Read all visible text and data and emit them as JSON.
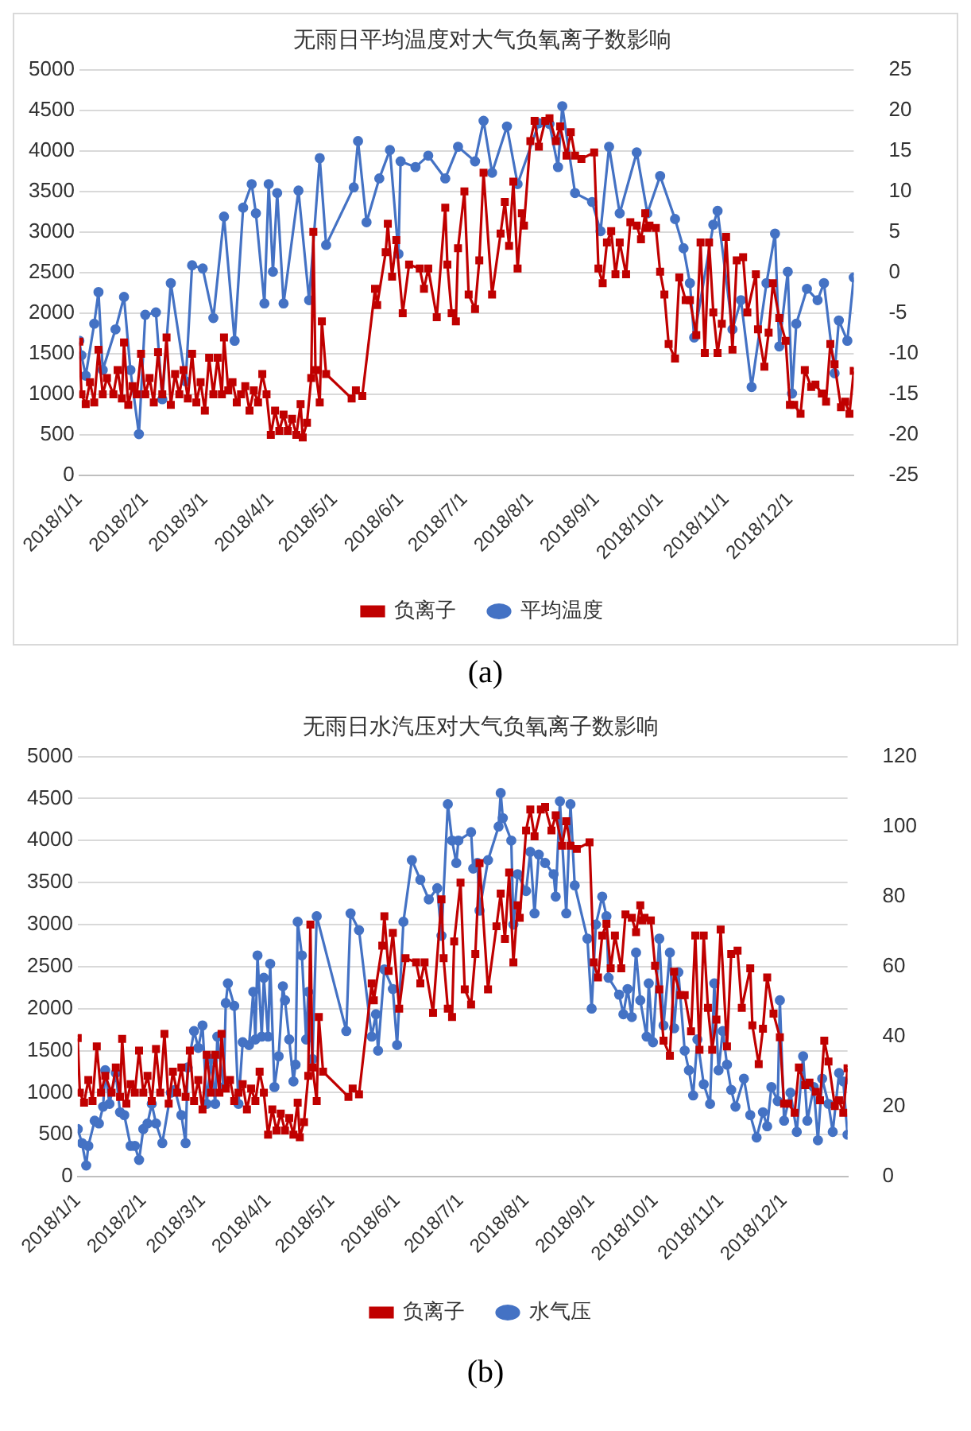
{
  "chart_data": [
    {
      "type": "line",
      "title": "无雨日平均温度对大气负氧离子数影响",
      "annotations": [
        "(a)"
      ],
      "xlim": [
        "2018-01-01",
        "2018-12-31"
      ],
      "xticks": [
        {
          "value": "2018-01-01",
          "label": "2018/1/1"
        },
        {
          "value": "2018-02-01",
          "label": "2018/2/1"
        },
        {
          "value": "2018-03-01",
          "label": "2018/3/1"
        },
        {
          "value": "2018-04-01",
          "label": "2018/4/1"
        },
        {
          "value": "2018-05-01",
          "label": "2018/5/1"
        },
        {
          "value": "2018-06-01",
          "label": "2018/6/1"
        },
        {
          "value": "2018-07-01",
          "label": "2018/7/1"
        },
        {
          "value": "2018-08-01",
          "label": "2018/8/1"
        },
        {
          "value": "2018-09-01",
          "label": "2018/9/1"
        },
        {
          "value": "2018-10-01",
          "label": "2018/10/1"
        },
        {
          "value": "2018-11-01",
          "label": "2018/11/1"
        },
        {
          "value": "2018-12-01",
          "label": "2018/12/1"
        }
      ],
      "ylim": [
        0,
        5000
      ],
      "yticks": [
        0,
        500,
        1000,
        1500,
        2000,
        2500,
        3000,
        3500,
        4000,
        4500,
        5000
      ],
      "y2lim": [
        -25,
        25
      ],
      "y2ticks": [
        -25,
        -20,
        -15,
        -10,
        -5,
        0,
        5,
        10,
        15,
        20,
        25
      ],
      "grid": "y",
      "legend": "bottom",
      "line_style": "solid",
      "series": [
        {
          "name": "负离子",
          "color": "#c00000",
          "marker": "square",
          "x": [
            "2018-01-01",
            "2018-01-02",
            "2018-01-04",
            "2018-01-06",
            "2018-01-08",
            "2018-01-10",
            "2018-01-12",
            "2018-01-14",
            "2018-01-17",
            "2018-01-19",
            "2018-01-21",
            "2018-01-22",
            "2018-01-24",
            "2018-01-26",
            "2018-01-28",
            "2018-01-30",
            "2018-02-01",
            "2018-02-03",
            "2018-02-05",
            "2018-02-07",
            "2018-02-09",
            "2018-02-11",
            "2018-02-13",
            "2018-02-15",
            "2018-02-17",
            "2018-02-19",
            "2018-02-21",
            "2018-02-23",
            "2018-02-25",
            "2018-02-27",
            "2018-03-01",
            "2018-03-03",
            "2018-03-05",
            "2018-03-07",
            "2018-03-09",
            "2018-03-10",
            "2018-03-12",
            "2018-03-14",
            "2018-03-16",
            "2018-03-18",
            "2018-03-20",
            "2018-03-22",
            "2018-03-24",
            "2018-03-26",
            "2018-03-28",
            "2018-03-30",
            "2018-04-01",
            "2018-04-03",
            "2018-04-05",
            "2018-04-07",
            "2018-04-09",
            "2018-04-11",
            "2018-04-13",
            "2018-04-15",
            "2018-04-16",
            "2018-04-18",
            "2018-04-20",
            "2018-04-21",
            "2018-04-22",
            "2018-04-24",
            "2018-04-25",
            "2018-04-27",
            "2018-05-09",
            "2018-05-11",
            "2018-05-14",
            "2018-05-20",
            "2018-05-21",
            "2018-05-25",
            "2018-05-26",
            "2018-05-28",
            "2018-05-30",
            "2018-06-02",
            "2018-06-05",
            "2018-06-10",
            "2018-06-12",
            "2018-06-14",
            "2018-06-18",
            "2018-06-22",
            "2018-06-23",
            "2018-06-25",
            "2018-06-27",
            "2018-06-28",
            "2018-07-01",
            "2018-07-03",
            "2018-07-06",
            "2018-07-08",
            "2018-07-10",
            "2018-07-14",
            "2018-07-18",
            "2018-07-20",
            "2018-07-22",
            "2018-07-24",
            "2018-07-26",
            "2018-07-28",
            "2018-07-29",
            "2018-08-01",
            "2018-08-03",
            "2018-08-05",
            "2018-08-08",
            "2018-08-10",
            "2018-08-13",
            "2018-08-15",
            "2018-08-18",
            "2018-08-20",
            "2018-08-22",
            "2018-08-25",
            "2018-08-31",
            "2018-09-02",
            "2018-09-04",
            "2018-09-06",
            "2018-09-08",
            "2018-09-10",
            "2018-09-12",
            "2018-09-15",
            "2018-09-17",
            "2018-09-20",
            "2018-09-22",
            "2018-09-24",
            "2018-09-25",
            "2018-09-26",
            "2018-09-29",
            "2018-10-01",
            "2018-10-03",
            "2018-10-05",
            "2018-10-08",
            "2018-10-10",
            "2018-10-13",
            "2018-10-15",
            "2018-10-18",
            "2018-10-20",
            "2018-10-22",
            "2018-10-24",
            "2018-10-26",
            "2018-10-28",
            "2018-10-30",
            "2018-11-01",
            "2018-11-04",
            "2018-11-06",
            "2018-11-09",
            "2018-11-11",
            "2018-11-15",
            "2018-11-16",
            "2018-11-19",
            "2018-11-21",
            "2018-11-23",
            "2018-11-26",
            "2018-11-29",
            "2018-12-01",
            "2018-12-03",
            "2018-12-06",
            "2018-12-08",
            "2018-12-11",
            "2018-12-13",
            "2018-12-16",
            "2018-12-18",
            "2018-12-20",
            "2018-12-22",
            "2018-12-25",
            "2018-12-27",
            "2018-12-29",
            "2018-12-31"
          ],
          "values": [
            1650,
            1000,
            880,
            1150,
            900,
            1550,
            1000,
            1200,
            1000,
            1300,
            950,
            1640,
            870,
            1100,
            1000,
            1500,
            1000,
            1200,
            900,
            1520,
            1000,
            1700,
            870,
            1250,
            1000,
            1300,
            950,
            1500,
            900,
            1150,
            800,
            1450,
            1000,
            1450,
            1000,
            1700,
            1050,
            1150,
            900,
            1000,
            1100,
            800,
            1050,
            900,
            1250,
            1000,
            500,
            800,
            550,
            750,
            550,
            700,
            500,
            880,
            470,
            650,
            1200,
            3000,
            1300,
            900,
            1900,
            1250,
            950,
            1050,
            980,
            2300,
            2100,
            2750,
            3100,
            2450,
            2900,
            2000,
            2600,
            2550,
            2300,
            2550,
            1950,
            3300,
            2600,
            2000,
            1900,
            2800,
            3500,
            2230,
            2050,
            2650,
            3730,
            2230,
            2980,
            3370,
            2830,
            3620,
            2550,
            3230,
            3080,
            4120,
            4370,
            4050,
            4370,
            4400,
            4120,
            4300,
            3940,
            4230,
            3940,
            3900,
            3980,
            2550,
            2370,
            2870,
            3010,
            2480,
            2870,
            2480,
            3120,
            3080,
            2910,
            3230,
            3050,
            3080,
            3050,
            2510,
            2230,
            1620,
            1440,
            2440,
            2160,
            2160,
            1730,
            2870,
            1510,
            2870,
            2010,
            1510,
            1870,
            2940,
            1550,
            2650,
            2690,
            2010,
            2480,
            1800,
            1340,
            1760,
            2370,
            1940,
            1660,
            870,
            870,
            760,
            1300,
            1090,
            1120,
            1010,
            910,
            1620,
            1370,
            840,
            910,
            760,
            1290
          ]
        },
        {
          "name": "平均温度",
          "color": "#4472c4",
          "marker": "circle",
          "axis": "y2",
          "x": [
            "2018-01-01",
            "2018-01-02",
            "2018-01-04",
            "2018-01-08",
            "2018-01-10",
            "2018-01-12",
            "2018-01-18",
            "2018-01-22",
            "2018-01-25",
            "2018-01-29",
            "2018-02-01",
            "2018-02-06",
            "2018-02-09",
            "2018-02-13",
            "2018-02-20",
            "2018-02-23",
            "2018-02-28",
            "2018-03-05",
            "2018-03-10",
            "2018-03-15",
            "2018-03-19",
            "2018-03-23",
            "2018-03-25",
            "2018-03-29",
            "2018-03-31",
            "2018-04-02",
            "2018-04-04",
            "2018-04-07",
            "2018-04-14",
            "2018-04-19",
            "2018-04-24",
            "2018-04-27",
            "2018-05-10",
            "2018-05-12",
            "2018-05-16",
            "2018-05-22",
            "2018-05-27",
            "2018-05-31",
            "2018-06-01",
            "2018-06-08",
            "2018-06-14",
            "2018-06-22",
            "2018-06-28",
            "2018-07-06",
            "2018-07-10",
            "2018-07-14",
            "2018-07-21",
            "2018-07-26",
            "2018-08-05",
            "2018-08-10",
            "2018-08-14",
            "2018-08-16",
            "2018-08-22",
            "2018-08-30",
            "2018-09-03",
            "2018-09-07",
            "2018-09-12",
            "2018-09-20",
            "2018-09-25",
            "2018-10-01",
            "2018-10-08",
            "2018-10-12",
            "2018-10-15",
            "2018-10-17",
            "2018-10-26",
            "2018-10-28",
            "2018-11-04",
            "2018-11-08",
            "2018-11-13",
            "2018-11-20",
            "2018-11-24",
            "2018-11-26",
            "2018-11-30",
            "2018-12-02",
            "2018-12-04",
            "2018-12-09",
            "2018-12-14",
            "2018-12-17",
            "2018-12-22",
            "2018-12-24",
            "2018-12-28",
            "2018-12-31"
          ],
          "values": [
            -8.4,
            -10.2,
            -12.7,
            -6.3,
            -2.4,
            -12,
            -7,
            -3,
            -12,
            -19.9,
            -5.2,
            -4.9,
            -15.6,
            -1.3,
            -13.4,
            0.9,
            0.5,
            -5.6,
            6.9,
            -8.4,
            8,
            10.9,
            7.3,
            -3.8,
            10.9,
            0.1,
            9.8,
            -3.8,
            10.1,
            -3.4,
            14.1,
            3.4,
            10.5,
            16.2,
            6.2,
            11.6,
            15.1,
            2.3,
            13.7,
            13,
            14.4,
            11.6,
            15.5,
            13.7,
            18.7,
            12.3,
            18,
            10.9,
            18.4,
            18.3,
            13,
            20.5,
            9.8,
            8.7,
            5.1,
            15.5,
            7.3,
            14.8,
            7.3,
            11.9,
            6.6,
            3,
            -1.3,
            -8,
            5.9,
            7.6,
            -7,
            -3.4,
            -14.1,
            -1.3,
            4.8,
            -9.1,
            0.1,
            -14.9,
            -6.3,
            -2,
            -3.4,
            -1.3,
            -12.4,
            -5.9,
            -8.4,
            -0.6
          ]
        }
      ]
    },
    {
      "type": "line",
      "title": "无雨日水汽压对大气负氧离子数影响",
      "annotations": [
        "(b)"
      ],
      "xlim": [
        "2018-01-01",
        "2018-12-31"
      ],
      "xticks": [
        {
          "value": "2018-01-01",
          "label": "2018/1/1"
        },
        {
          "value": "2018-02-01",
          "label": "2018/2/1"
        },
        {
          "value": "2018-03-01",
          "label": "2018/3/1"
        },
        {
          "value": "2018-04-01",
          "label": "2018/4/1"
        },
        {
          "value": "2018-05-01",
          "label": "2018/5/1"
        },
        {
          "value": "2018-06-01",
          "label": "2018/6/1"
        },
        {
          "value": "2018-07-01",
          "label": "2018/7/1"
        },
        {
          "value": "2018-08-01",
          "label": "2018/8/1"
        },
        {
          "value": "2018-09-01",
          "label": "2018/9/1"
        },
        {
          "value": "2018-10-01",
          "label": "2018/10/1"
        },
        {
          "value": "2018-11-01",
          "label": "2018/11/1"
        },
        {
          "value": "2018-12-01",
          "label": "2018/12/1"
        }
      ],
      "ylim": [
        0,
        5000
      ],
      "yticks": [
        0,
        500,
        1000,
        1500,
        2000,
        2500,
        3000,
        3500,
        4000,
        4500,
        5000
      ],
      "y2lim": [
        0,
        120
      ],
      "y2ticks": [
        0,
        20,
        40,
        60,
        80,
        100,
        120
      ],
      "grid": "y",
      "legend": "bottom",
      "line_style": "solid",
      "series": [
        {
          "name": "负离子",
          "color": "#c00000",
          "marker": "square",
          "x": [
            "2018-01-01",
            "2018-01-02",
            "2018-01-04",
            "2018-01-06",
            "2018-01-08",
            "2018-01-10",
            "2018-01-12",
            "2018-01-14",
            "2018-01-17",
            "2018-01-19",
            "2018-01-21",
            "2018-01-22",
            "2018-01-24",
            "2018-01-26",
            "2018-01-28",
            "2018-01-30",
            "2018-02-01",
            "2018-02-03",
            "2018-02-05",
            "2018-02-07",
            "2018-02-09",
            "2018-02-11",
            "2018-02-13",
            "2018-02-15",
            "2018-02-17",
            "2018-02-19",
            "2018-02-21",
            "2018-02-23",
            "2018-02-25",
            "2018-02-27",
            "2018-03-01",
            "2018-03-03",
            "2018-03-05",
            "2018-03-07",
            "2018-03-09",
            "2018-03-10",
            "2018-03-12",
            "2018-03-14",
            "2018-03-16",
            "2018-03-18",
            "2018-03-20",
            "2018-03-22",
            "2018-03-24",
            "2018-03-26",
            "2018-03-28",
            "2018-03-30",
            "2018-04-01",
            "2018-04-03",
            "2018-04-05",
            "2018-04-07",
            "2018-04-09",
            "2018-04-11",
            "2018-04-13",
            "2018-04-15",
            "2018-04-16",
            "2018-04-18",
            "2018-04-20",
            "2018-04-21",
            "2018-04-22",
            "2018-04-24",
            "2018-04-25",
            "2018-04-27",
            "2018-05-09",
            "2018-05-11",
            "2018-05-14",
            "2018-05-20",
            "2018-05-21",
            "2018-05-25",
            "2018-05-26",
            "2018-05-28",
            "2018-05-30",
            "2018-06-02",
            "2018-06-05",
            "2018-06-10",
            "2018-06-12",
            "2018-06-14",
            "2018-06-18",
            "2018-06-22",
            "2018-06-23",
            "2018-06-25",
            "2018-06-27",
            "2018-06-28",
            "2018-07-01",
            "2018-07-03",
            "2018-07-06",
            "2018-07-08",
            "2018-07-10",
            "2018-07-14",
            "2018-07-18",
            "2018-07-20",
            "2018-07-22",
            "2018-07-24",
            "2018-07-26",
            "2018-07-28",
            "2018-07-29",
            "2018-08-01",
            "2018-08-03",
            "2018-08-05",
            "2018-08-08",
            "2018-08-10",
            "2018-08-13",
            "2018-08-15",
            "2018-08-18",
            "2018-08-20",
            "2018-08-22",
            "2018-08-25",
            "2018-08-31",
            "2018-09-02",
            "2018-09-04",
            "2018-09-06",
            "2018-09-08",
            "2018-09-10",
            "2018-09-12",
            "2018-09-15",
            "2018-09-17",
            "2018-09-20",
            "2018-09-22",
            "2018-09-24",
            "2018-09-25",
            "2018-09-26",
            "2018-09-29",
            "2018-10-01",
            "2018-10-03",
            "2018-10-05",
            "2018-10-08",
            "2018-10-10",
            "2018-10-13",
            "2018-10-15",
            "2018-10-18",
            "2018-10-20",
            "2018-10-22",
            "2018-10-24",
            "2018-10-26",
            "2018-10-28",
            "2018-10-30",
            "2018-11-01",
            "2018-11-04",
            "2018-11-06",
            "2018-11-09",
            "2018-11-11",
            "2018-11-15",
            "2018-11-16",
            "2018-11-19",
            "2018-11-21",
            "2018-11-23",
            "2018-11-26",
            "2018-11-29",
            "2018-12-01",
            "2018-12-03",
            "2018-12-06",
            "2018-12-08",
            "2018-12-11",
            "2018-12-13",
            "2018-12-16",
            "2018-12-18",
            "2018-12-20",
            "2018-12-22",
            "2018-12-25",
            "2018-12-27",
            "2018-12-29",
            "2018-12-31"
          ],
          "values": [
            1650,
            1000,
            880,
            1150,
            900,
            1550,
            1000,
            1200,
            1000,
            1300,
            950,
            1640,
            870,
            1100,
            1000,
            1500,
            1000,
            1200,
            900,
            1520,
            1000,
            1700,
            870,
            1250,
            1000,
            1300,
            950,
            1500,
            900,
            1150,
            800,
            1450,
            1000,
            1450,
            1000,
            1700,
            1050,
            1150,
            900,
            1000,
            1100,
            800,
            1050,
            900,
            1250,
            1000,
            500,
            800,
            550,
            750,
            550,
            700,
            500,
            880,
            470,
            650,
            1200,
            3000,
            1300,
            900,
            1900,
            1250,
            950,
            1050,
            980,
            2300,
            2100,
            2750,
            3100,
            2450,
            2900,
            2000,
            2600,
            2550,
            2300,
            2550,
            1950,
            3300,
            2600,
            2000,
            1900,
            2800,
            3500,
            2230,
            2050,
            2650,
            3730,
            2230,
            2980,
            3370,
            2830,
            3620,
            2550,
            3230,
            3080,
            4120,
            4370,
            4050,
            4370,
            4400,
            4120,
            4300,
            3940,
            4230,
            3940,
            3900,
            3980,
            2550,
            2370,
            2870,
            3010,
            2480,
            2870,
            2480,
            3120,
            3080,
            2910,
            3230,
            3050,
            3080,
            3050,
            2510,
            2230,
            1620,
            1440,
            2440,
            2160,
            2160,
            1730,
            2870,
            1510,
            2870,
            2010,
            1510,
            1870,
            2940,
            1550,
            2650,
            2690,
            2010,
            2480,
            1800,
            1340,
            1760,
            2370,
            1940,
            1660,
            870,
            870,
            760,
            1300,
            1090,
            1120,
            1010,
            910,
            1620,
            1370,
            840,
            910,
            760,
            1290
          ]
        },
        {
          "name": "水气压",
          "color": "#4472c4",
          "marker": "circle",
          "axis": "y2",
          "x": [
            "2018-01-01",
            "2018-01-03",
            "2018-01-05",
            "2018-01-06",
            "2018-01-09",
            "2018-01-11",
            "2018-01-13",
            "2018-01-14",
            "2018-01-16",
            "2018-01-19",
            "2018-01-21",
            "2018-01-23",
            "2018-01-26",
            "2018-01-28",
            "2018-01-30",
            "2018-02-01",
            "2018-02-03",
            "2018-02-05",
            "2018-02-07",
            "2018-02-10",
            "2018-02-14",
            "2018-02-16",
            "2018-02-19",
            "2018-02-21",
            "2018-02-22",
            "2018-02-25",
            "2018-02-27",
            "2018-03-01",
            "2018-03-03",
            "2018-03-05",
            "2018-03-07",
            "2018-03-08",
            "2018-03-11",
            "2018-03-12",
            "2018-03-13",
            "2018-03-16",
            "2018-03-18",
            "2018-03-20",
            "2018-03-23",
            "2018-03-25",
            "2018-03-26",
            "2018-03-27",
            "2018-03-29",
            "2018-03-30",
            "2018-04-01",
            "2018-04-02",
            "2018-04-04",
            "2018-04-06",
            "2018-04-08",
            "2018-04-09",
            "2018-04-11",
            "2018-04-13",
            "2018-04-14",
            "2018-04-15",
            "2018-04-17",
            "2018-04-19",
            "2018-04-20",
            "2018-04-22",
            "2018-04-24",
            "2018-05-08",
            "2018-05-10",
            "2018-05-14",
            "2018-05-20",
            "2018-05-22",
            "2018-05-23",
            "2018-05-26",
            "2018-05-30",
            "2018-06-01",
            "2018-06-04",
            "2018-06-08",
            "2018-06-12",
            "2018-06-16",
            "2018-06-20",
            "2018-06-22",
            "2018-06-25",
            "2018-06-27",
            "2018-06-29",
            "2018-06-30",
            "2018-07-06",
            "2018-07-07",
            "2018-07-09",
            "2018-07-10",
            "2018-07-14",
            "2018-07-19",
            "2018-07-20",
            "2018-07-21",
            "2018-07-25",
            "2018-07-26",
            "2018-07-28",
            "2018-08-01",
            "2018-08-03",
            "2018-08-05",
            "2018-08-07",
            "2018-08-10",
            "2018-08-14",
            "2018-08-15",
            "2018-08-17",
            "2018-08-20",
            "2018-08-22",
            "2018-08-24",
            "2018-08-30",
            "2018-09-01",
            "2018-09-03",
            "2018-09-06",
            "2018-09-08",
            "2018-09-09",
            "2018-09-14",
            "2018-09-16",
            "2018-09-18",
            "2018-09-20",
            "2018-09-22",
            "2018-09-24",
            "2018-09-27",
            "2018-09-28",
            "2018-09-30",
            "2018-10-03",
            "2018-10-05",
            "2018-10-08",
            "2018-10-10",
            "2018-10-12",
            "2018-10-15",
            "2018-10-17",
            "2018-10-19",
            "2018-10-21",
            "2018-10-24",
            "2018-10-27",
            "2018-10-29",
            "2018-10-31",
            "2018-11-02",
            "2018-11-04",
            "2018-11-06",
            "2018-11-08",
            "2018-11-12",
            "2018-11-15",
            "2018-11-18",
            "2018-11-21",
            "2018-11-23",
            "2018-11-25",
            "2018-11-28",
            "2018-11-29",
            "2018-12-01",
            "2018-12-04",
            "2018-12-07",
            "2018-12-10",
            "2018-12-12",
            "2018-12-15",
            "2018-12-17",
            "2018-12-19",
            "2018-12-22",
            "2018-12-24",
            "2018-12-27",
            "2018-12-29",
            "2018-12-31"
          ],
          "values": [
            13.6,
            9.6,
            3.2,
            8.8,
            16,
            15.2,
            20,
            30.4,
            20.8,
            29.6,
            18.4,
            17.6,
            8.8,
            8.8,
            4.8,
            13.6,
            15.2,
            20.8,
            15.2,
            9.6,
            24,
            24.8,
            17.6,
            9.6,
            31.2,
            41.6,
            36.8,
            43.2,
            20.8,
            33.6,
            20.8,
            40,
            25.6,
            49.6,
            55.2,
            48.8,
            20.8,
            38.4,
            37.6,
            52.8,
            39.2,
            63.2,
            40,
            56.8,
            40,
            60.8,
            25.6,
            34.4,
            54.4,
            50.4,
            39.2,
            27.2,
            32,
            72.8,
            63.2,
            39.2,
            52.8,
            33.6,
            74.4,
            41.6,
            75.2,
            70.4,
            40,
            46.4,
            36,
            59.2,
            53.6,
            37.6,
            72.8,
            90.4,
            84.8,
            79.2,
            82.4,
            68.8,
            106.4,
            96,
            89.6,
            96,
            98.4,
            88,
            89.6,
            76,
            90.4,
            100,
            109.6,
            102.4,
            96,
            72,
            86.4,
            81.6,
            92.8,
            75.2,
            92,
            89.6,
            86.4,
            80,
            107.2,
            75.2,
            106.4,
            83.2,
            68,
            48,
            72,
            80,
            74.4,
            56.8,
            52,
            46.4,
            53.6,
            45.6,
            64,
            50.4,
            40,
            55.2,
            38.4,
            68,
            43.2,
            64,
            42.4,
            58.4,
            36,
            30.4,
            23.2,
            39.2,
            26.4,
            20.8,
            55.2,
            30.4,
            41.6,
            32,
            24.8,
            20,
            28,
            17.6,
            11.2,
            18.4,
            14.4,
            25.6,
            21.6,
            50.4,
            16,
            24,
            12.8,
            34.4,
            16,
            25.6,
            10.4,
            28,
            20.8,
            12.8,
            29.6,
            27.2,
            12
          ]
        }
      ]
    }
  ]
}
